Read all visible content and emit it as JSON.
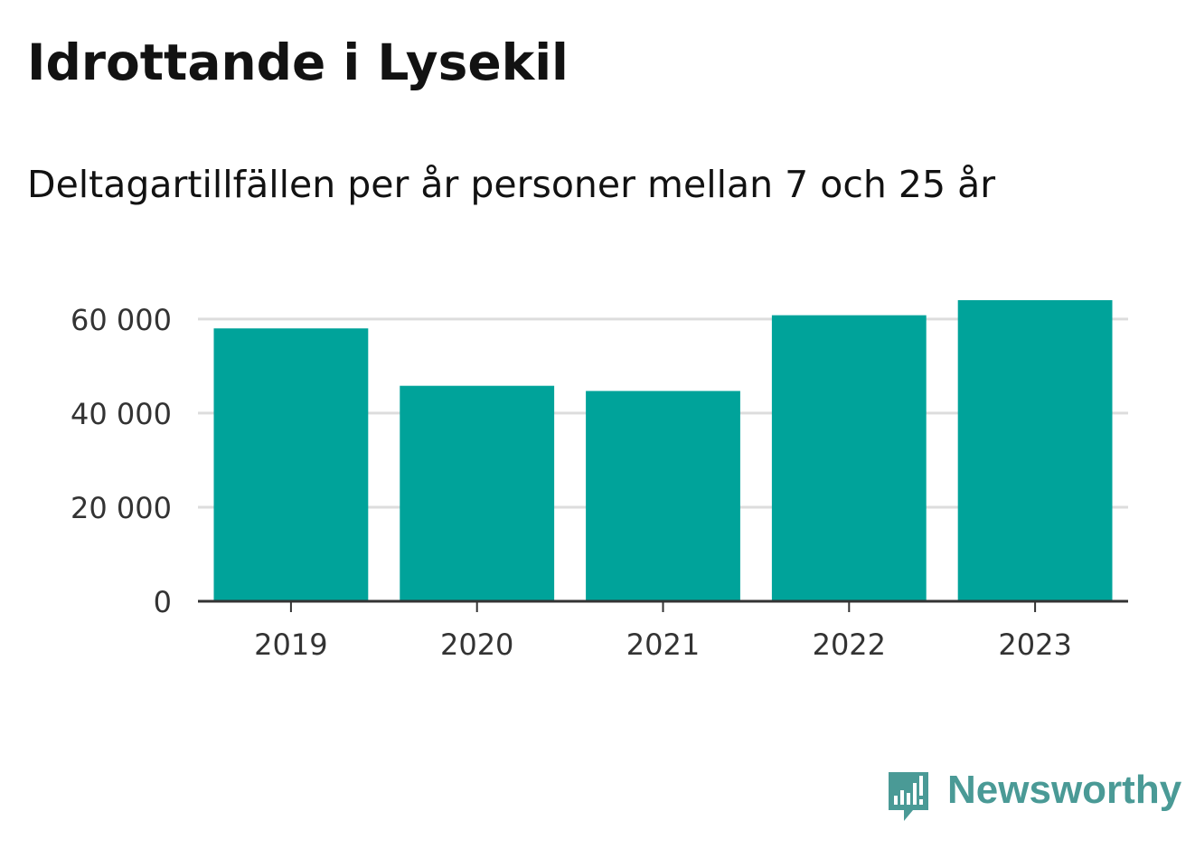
{
  "title": "Idrottande i Lysekil",
  "subtitle": "Deltagartillfällen per år personer mellan 7 och 25 år",
  "logo": {
    "text": "Newsworthy",
    "icon": "newsworthy-chart-bubble-icon",
    "color": "#4a9a96"
  },
  "chart_data": {
    "type": "bar",
    "title": "Idrottande i Lysekil",
    "subtitle": "Deltagartillfällen per år personer mellan 7 och 25 år",
    "xlabel": "",
    "ylabel": "",
    "categories": [
      "2019",
      "2020",
      "2021",
      "2022",
      "2023"
    ],
    "values": [
      58000,
      45800,
      44700,
      60800,
      64000
    ],
    "ylim": [
      0,
      64000
    ],
    "yticks": [
      0,
      20000,
      40000,
      60000
    ],
    "ytick_labels": [
      "0",
      "20 000",
      "40 000",
      "60 000"
    ],
    "grid": true,
    "bar_color": "#00a39a",
    "grid_color": "#dddddd",
    "axis_color": "#333333"
  }
}
